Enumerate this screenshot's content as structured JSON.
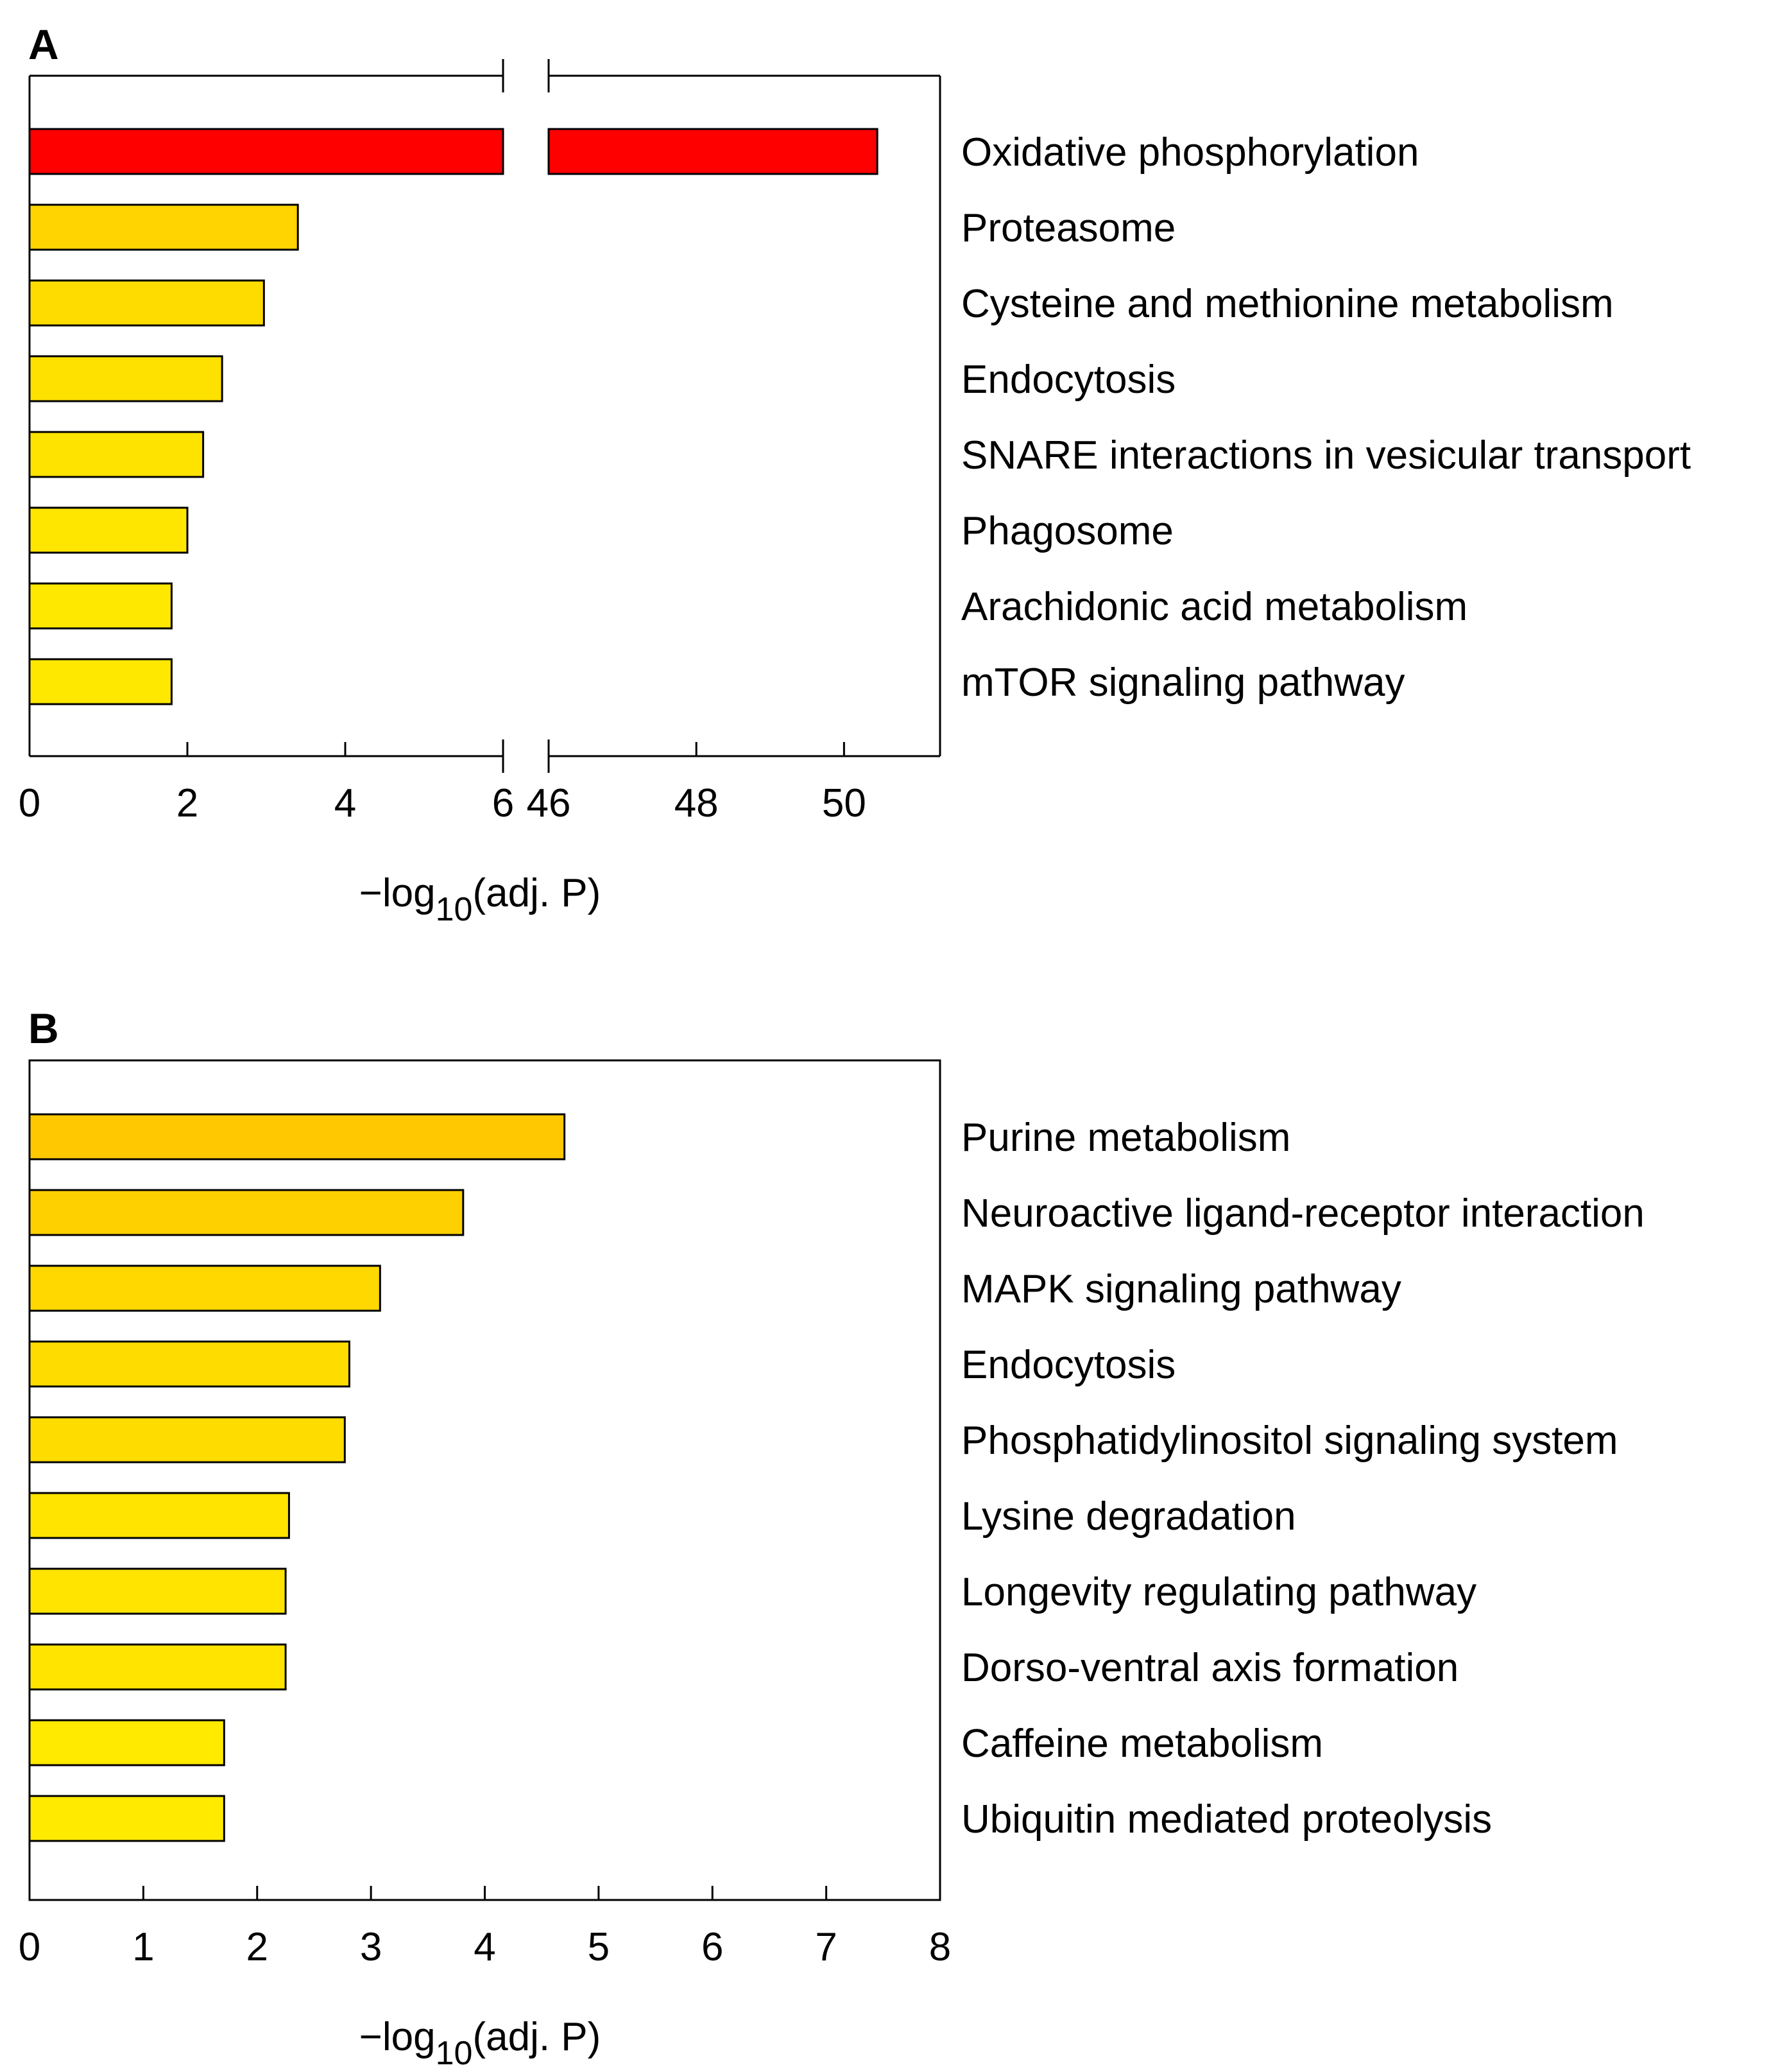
{
  "chart_data": [
    {
      "panel_label": "A",
      "type": "bar",
      "orientation": "horizontal",
      "axis_break": true,
      "categories": [
        "Oxidative phosphorylation",
        "Proteasome",
        "Cysteine and methionine metabolism",
        "Endocytosis",
        "SNARE interactions in vesicular transport",
        "Phagosome",
        "Arachidonic acid metabolism",
        "mTOR signaling pathway"
      ],
      "values": [
        50.45,
        3.4,
        2.97,
        2.44,
        2.2,
        2.0,
        1.8,
        1.8
      ],
      "bar_colors": [
        "#ff0000",
        "#ffd400",
        "#ffdc00",
        "#ffe100",
        "#ffe300",
        "#ffe600",
        "#ffe800",
        "#ffe800"
      ],
      "xlabel_main": "−log",
      "xlabel_sub": "10",
      "xlabel_rest": "(adj. P)",
      "xlim_segments": [
        [
          0,
          6
        ],
        [
          46,
          51.3
        ]
      ],
      "xticks_segment1": [
        0,
        2,
        4,
        6
      ],
      "xticks_segment2": [
        46,
        48,
        50
      ],
      "tick_labels": [
        "0",
        "2",
        "4",
        "6",
        "46",
        "48",
        "50"
      ],
      "grid": false,
      "legend": "none"
    },
    {
      "panel_label": "B",
      "type": "bar",
      "orientation": "horizontal",
      "axis_break": false,
      "categories": [
        "Purine metabolism",
        "Neuroactive ligand-receptor interaction",
        "MAPK signaling pathway",
        "Endocytosis",
        "Phosphatidylinositol signaling system",
        "Lysine degradation",
        "Longevity regulating pathway",
        "Dorso-ventral axis formation",
        "Caffeine metabolism",
        "Ubiquitin mediated proteolysis"
      ],
      "values": [
        4.7,
        3.81,
        3.08,
        2.81,
        2.77,
        2.28,
        2.25,
        2.25,
        1.71,
        1.71
      ],
      "bar_colors": [
        "#ffc800",
        "#ffd000",
        "#ffd800",
        "#ffdc00",
        "#ffdc00",
        "#ffe400",
        "#ffe400",
        "#ffe400",
        "#ffea00",
        "#ffea00"
      ],
      "xlabel_main": "−log",
      "xlabel_sub": "10",
      "xlabel_rest": "(adj. P)",
      "xlim": [
        0,
        8
      ],
      "xticks": [
        0,
        1,
        2,
        3,
        4,
        5,
        6,
        7,
        8
      ],
      "tick_labels": [
        "0",
        "1",
        "2",
        "3",
        "4",
        "5",
        "6",
        "7",
        "8"
      ],
      "grid": false,
      "legend": "none"
    }
  ]
}
